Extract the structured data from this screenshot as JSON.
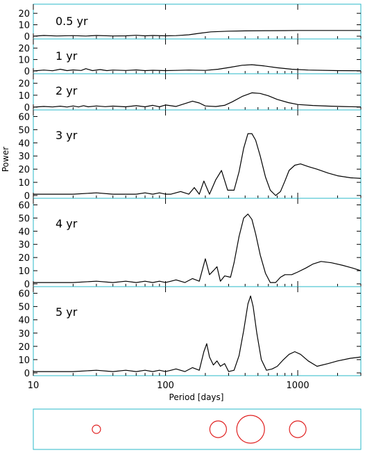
{
  "colors": {
    "frame": "#29b8c8",
    "curve": "#000000",
    "circle": "#e02020",
    "background": "#ffffff"
  },
  "chart_data": [
    {
      "type": "line",
      "label": "0.5 yr",
      "ylim": [
        0,
        28
      ],
      "yticks": [
        0,
        10,
        20
      ],
      "yscale": "linear",
      "x": [
        10,
        12,
        15,
        20,
        25,
        30,
        40,
        50,
        60,
        70,
        80,
        100,
        120,
        150,
        180,
        220,
        300,
        400,
        600,
        800,
        1000,
        1500,
        2000,
        3000
      ],
      "y": [
        0,
        0.6,
        0.2,
        0.5,
        0.1,
        0.6,
        0.2,
        0.3,
        0.8,
        0.3,
        0.6,
        0.3,
        0.5,
        1.2,
        2.5,
        3.8,
        4.4,
        4.6,
        4.8,
        4.9,
        5.0,
        5.0,
        5.0,
        5.0
      ]
    },
    {
      "type": "line",
      "label": "1 yr",
      "ylim": [
        0,
        28
      ],
      "yticks": [
        0,
        10,
        20
      ],
      "yscale": "linear",
      "x": [
        10,
        12,
        14,
        16,
        18,
        20,
        23,
        25,
        28,
        32,
        36,
        40,
        50,
        60,
        70,
        80,
        100,
        120,
        150,
        200,
        250,
        300,
        380,
        450,
        550,
        700,
        900,
        1200,
        2000,
        3000
      ],
      "y": [
        0,
        0.8,
        0.2,
        1.5,
        0.3,
        0.9,
        0.4,
        2.0,
        0.3,
        1.2,
        0.3,
        0.8,
        0.4,
        0.9,
        0.3,
        0.6,
        0.3,
        0.5,
        0.8,
        0.5,
        1.5,
        3.0,
        5.0,
        5.5,
        4.5,
        2.8,
        1.5,
        0.8,
        0.3,
        0.2
      ]
    },
    {
      "type": "line",
      "label": "2 yr",
      "ylim": [
        0,
        28
      ],
      "yticks": [
        0,
        10,
        20
      ],
      "yscale": "linear",
      "x": [
        10,
        12,
        14,
        16,
        18,
        20,
        22,
        24,
        26,
        30,
        35,
        40,
        50,
        60,
        70,
        80,
        90,
        100,
        120,
        140,
        160,
        180,
        200,
        240,
        280,
        320,
        380,
        450,
        520,
        600,
        700,
        850,
        1000,
        1300,
        1700,
        2200,
        3000
      ],
      "y": [
        0,
        0.6,
        0.2,
        0.8,
        0.1,
        1.0,
        0.2,
        1.2,
        0.3,
        1.0,
        0.4,
        0.9,
        0.3,
        1.2,
        0.3,
        1.5,
        0.3,
        1.8,
        0.6,
        3.0,
        5.0,
        3.5,
        1.0,
        0.5,
        1.5,
        4.5,
        9.0,
        12.0,
        11.5,
        9.5,
        6.5,
        3.8,
        2.2,
        1.4,
        0.9,
        0.5,
        0.2
      ]
    },
    {
      "type": "line",
      "label": "3 yr",
      "ylim": [
        0,
        65
      ],
      "yticks": [
        0,
        10,
        20,
        30,
        40,
        50,
        60
      ],
      "yscale": "linear",
      "x": [
        10,
        20,
        30,
        40,
        50,
        60,
        70,
        80,
        90,
        100,
        110,
        130,
        150,
        165,
        180,
        195,
        215,
        240,
        265,
        295,
        330,
        360,
        390,
        420,
        450,
        480,
        520,
        570,
        620,
        680,
        740,
        800,
        860,
        950,
        1050,
        1200,
        1400,
        1700,
        2000,
        2500,
        3000
      ],
      "y": [
        1,
        1,
        2,
        1,
        1,
        1,
        2,
        1,
        2,
        1,
        1,
        3,
        1,
        6,
        1,
        11,
        1,
        12,
        19,
        4,
        4,
        18,
        36,
        47,
        47,
        42,
        30,
        14,
        4,
        0,
        3,
        11,
        19,
        23,
        24,
        22,
        20,
        17,
        15,
        13.5,
        13
      ]
    },
    {
      "type": "line",
      "label": "4 yr",
      "ylim": [
        0,
        65
      ],
      "yticks": [
        0,
        10,
        20,
        30,
        40,
        50,
        60
      ],
      "yscale": "linear",
      "x": [
        10,
        20,
        30,
        40,
        50,
        60,
        70,
        80,
        90,
        100,
        110,
        120,
        140,
        160,
        180,
        200,
        215,
        230,
        245,
        260,
        280,
        310,
        330,
        360,
        390,
        420,
        450,
        480,
        520,
        570,
        620,
        680,
        740,
        800,
        900,
        1000,
        1150,
        1300,
        1500,
        1800,
        2200,
        2600,
        3000
      ],
      "y": [
        1,
        1,
        2,
        1,
        2,
        1,
        2,
        1,
        2,
        1,
        2,
        3,
        1,
        4,
        2,
        19,
        7,
        10,
        13,
        2,
        6,
        5,
        16,
        36,
        50,
        53,
        49,
        38,
        22,
        8,
        1,
        1,
        5,
        7,
        7,
        9,
        12,
        15,
        17,
        16,
        14,
        12,
        10
      ]
    },
    {
      "type": "line",
      "label": "5 yr",
      "ylim": [
        0,
        65
      ],
      "yticks": [
        0,
        10,
        20,
        30,
        40,
        50,
        60
      ],
      "yscale": "linear",
      "x": [
        10,
        20,
        30,
        40,
        50,
        60,
        70,
        80,
        90,
        100,
        110,
        120,
        140,
        160,
        180,
        195,
        205,
        215,
        230,
        245,
        260,
        280,
        300,
        330,
        360,
        390,
        420,
        440,
        460,
        490,
        530,
        580,
        640,
        700,
        780,
        860,
        950,
        1050,
        1200,
        1400,
        1700,
        2000,
        2500,
        3000
      ],
      "y": [
        1,
        1,
        2,
        1,
        2,
        1,
        2,
        1,
        2,
        1,
        2,
        3,
        1,
        4,
        2,
        16,
        22,
        12,
        6,
        9,
        5,
        7,
        1,
        2,
        13,
        32,
        52,
        58,
        50,
        30,
        10,
        2,
        3,
        5,
        10,
        14,
        16,
        14,
        9,
        5,
        7,
        9,
        11,
        12
      ]
    }
  ],
  "xaxis": {
    "scale": "log",
    "range": [
      10,
      3000
    ],
    "ticks": [
      10,
      100,
      1000
    ],
    "tick_labels": [
      "10",
      "100",
      "1000"
    ],
    "label": "Period [days]"
  },
  "yaxis": {
    "label": "Power"
  },
  "bottom_panel": {
    "circles": [
      {
        "period": 30,
        "size": 0.3
      },
      {
        "period": 250,
        "size": 0.6
      },
      {
        "period": 440,
        "size": 1.0
      },
      {
        "period": 1000,
        "size": 0.6
      }
    ]
  }
}
